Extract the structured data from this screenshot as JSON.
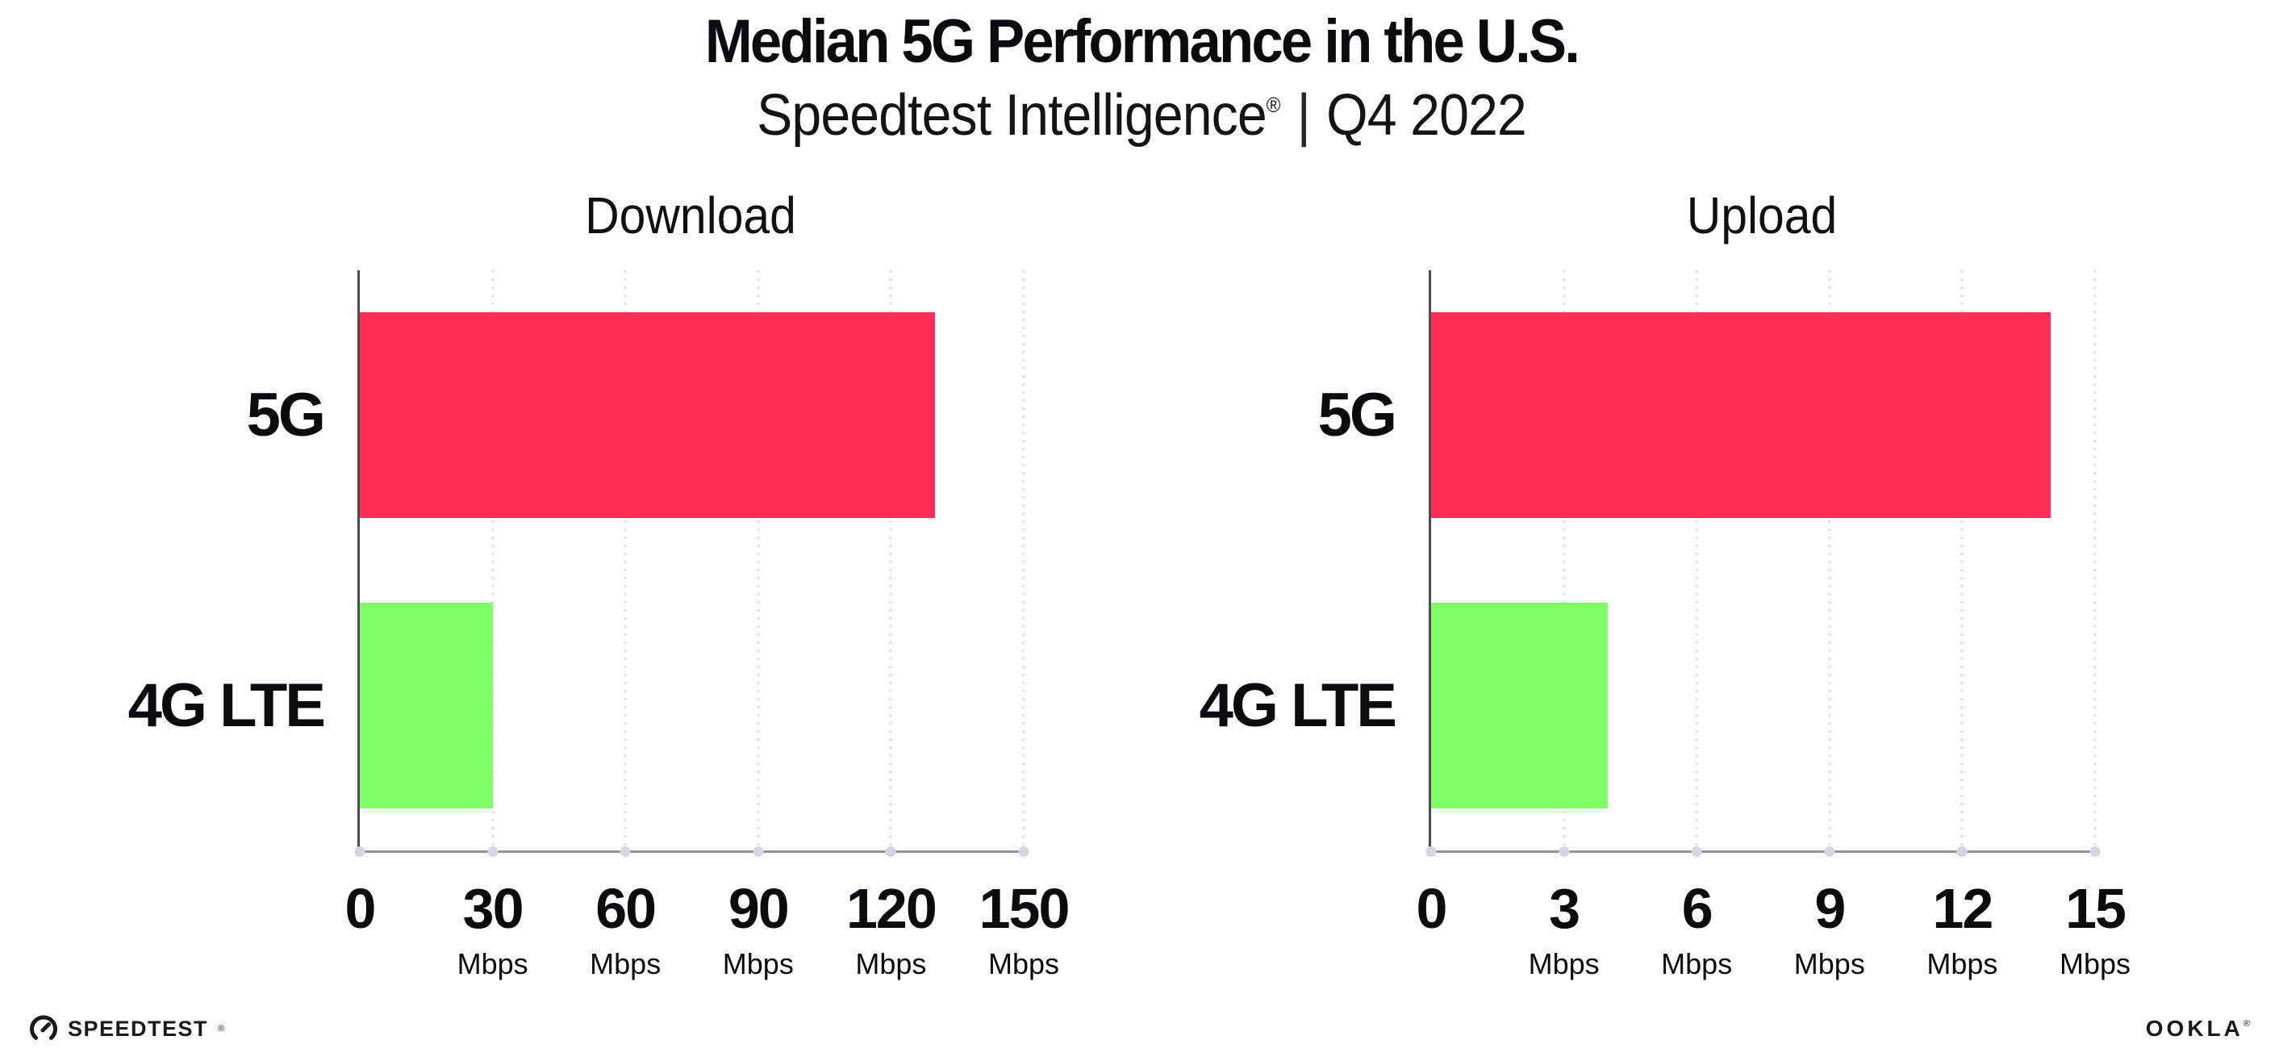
{
  "header": {
    "title": "Median 5G Performance in the U.S.",
    "subtitle_brand": "Speedtest Intelligence",
    "subtitle_registered": "®",
    "subtitle_divider": "|",
    "subtitle_period": "Q4 2022"
  },
  "chart_data": [
    {
      "type": "bar",
      "orientation": "horizontal",
      "title": "Download",
      "categories": [
        "5G",
        "4G LTE"
      ],
      "values": [
        130,
        30
      ],
      "unit": "Mbps",
      "xlim": [
        0,
        150
      ],
      "xticks": [
        0,
        30,
        60,
        90,
        120,
        150
      ],
      "bar_colors": [
        "#ff2d58",
        "#80fe66"
      ],
      "grid": "dotted-vertical",
      "legend": "none"
    },
    {
      "type": "bar",
      "orientation": "horizontal",
      "title": "Upload",
      "categories": [
        "5G",
        "4G LTE"
      ],
      "values": [
        14,
        4
      ],
      "unit": "Mbps",
      "xlim": [
        0,
        15
      ],
      "xticks": [
        0,
        3,
        6,
        9,
        12,
        15
      ],
      "bar_colors": [
        "#ff2d58",
        "#80fe66"
      ],
      "grid": "dotted-vertical",
      "legend": "none"
    }
  ],
  "colors": {
    "bar_5g": "#ff2d58",
    "bar_4g_lte": "#80fe66",
    "y_axis": "#4d4d59",
    "x_axis": "#92929c",
    "gridline": "#dfdfea"
  },
  "footer": {
    "speedtest_label": "SPEEDTEST",
    "speedtest_mark": "®",
    "ookla_label": "OOKLA",
    "ookla_mark": "®"
  }
}
